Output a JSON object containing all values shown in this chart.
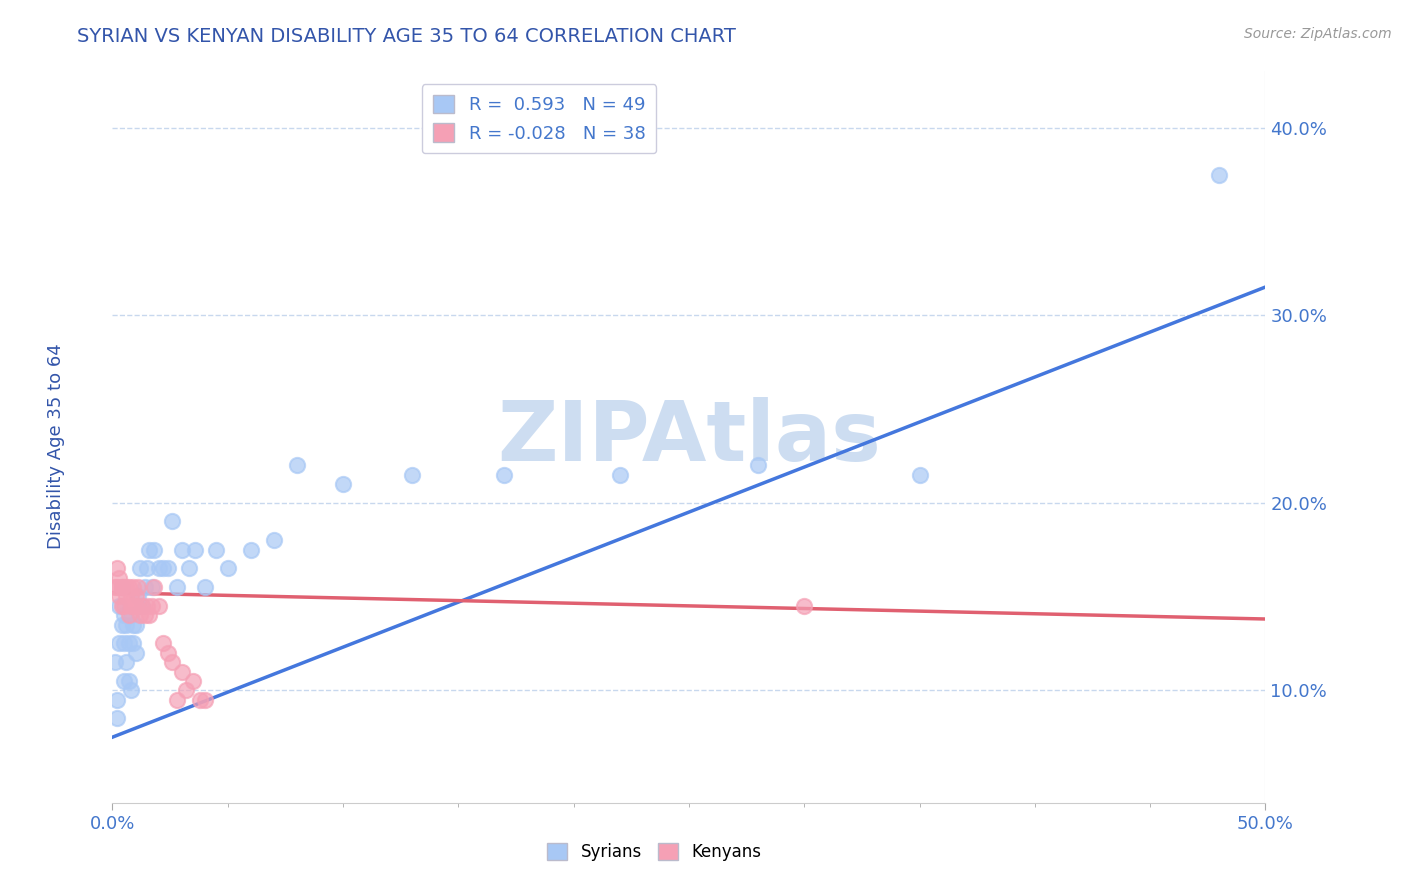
{
  "title": "SYRIAN VS KENYAN DISABILITY AGE 35 TO 64 CORRELATION CHART",
  "source": "Source: ZipAtlas.com",
  "ylabel": "Disability Age 35 to 64",
  "xmin": 0.0,
  "xmax": 0.5,
  "ymin": 0.04,
  "ymax": 0.43,
  "ytick_labels": [
    "10.0%",
    "20.0%",
    "30.0%",
    "40.0%"
  ],
  "ytick_positions": [
    0.1,
    0.2,
    0.3,
    0.4
  ],
  "legend_line1": "R =  0.593   N = 49",
  "legend_line2": "R = -0.028   N = 38",
  "syrian_color": "#a8c8f5",
  "kenyan_color": "#f5a0b5",
  "syrian_line_color": "#4477dd",
  "kenyan_line_color": "#e06070",
  "watermark": "ZIPAtlas",
  "watermark_color": "#c8daf0",
  "title_color": "#3355aa",
  "axis_label_color": "#3355aa",
  "tick_label_color": "#4477cc",
  "source_color": "#999999",
  "background_color": "#ffffff",
  "syrian_scatter_x": [
    0.001,
    0.002,
    0.002,
    0.003,
    0.003,
    0.004,
    0.004,
    0.005,
    0.005,
    0.005,
    0.006,
    0.006,
    0.007,
    0.007,
    0.008,
    0.008,
    0.009,
    0.009,
    0.01,
    0.01,
    0.011,
    0.012,
    0.013,
    0.014,
    0.015,
    0.016,
    0.017,
    0.018,
    0.02,
    0.022,
    0.024,
    0.026,
    0.028,
    0.03,
    0.033,
    0.036,
    0.04,
    0.045,
    0.05,
    0.06,
    0.07,
    0.08,
    0.1,
    0.13,
    0.17,
    0.22,
    0.28,
    0.35,
    0.48
  ],
  "syrian_scatter_y": [
    0.115,
    0.095,
    0.085,
    0.145,
    0.125,
    0.155,
    0.135,
    0.14,
    0.125,
    0.105,
    0.135,
    0.115,
    0.125,
    0.105,
    0.14,
    0.1,
    0.125,
    0.135,
    0.12,
    0.135,
    0.15,
    0.165,
    0.145,
    0.155,
    0.165,
    0.175,
    0.155,
    0.175,
    0.165,
    0.165,
    0.165,
    0.19,
    0.155,
    0.175,
    0.165,
    0.175,
    0.155,
    0.175,
    0.165,
    0.175,
    0.18,
    0.22,
    0.21,
    0.215,
    0.215,
    0.215,
    0.22,
    0.215,
    0.375
  ],
  "kenyan_scatter_x": [
    0.001,
    0.002,
    0.002,
    0.003,
    0.003,
    0.004,
    0.004,
    0.005,
    0.005,
    0.006,
    0.006,
    0.007,
    0.007,
    0.008,
    0.008,
    0.009,
    0.009,
    0.01,
    0.01,
    0.011,
    0.012,
    0.013,
    0.014,
    0.015,
    0.016,
    0.017,
    0.018,
    0.02,
    0.022,
    0.024,
    0.026,
    0.028,
    0.03,
    0.032,
    0.035,
    0.038,
    0.04,
    0.3
  ],
  "kenyan_scatter_y": [
    0.155,
    0.155,
    0.165,
    0.15,
    0.16,
    0.145,
    0.155,
    0.155,
    0.145,
    0.15,
    0.155,
    0.14,
    0.155,
    0.15,
    0.145,
    0.155,
    0.145,
    0.15,
    0.145,
    0.155,
    0.14,
    0.145,
    0.14,
    0.145,
    0.14,
    0.145,
    0.155,
    0.145,
    0.125,
    0.12,
    0.115,
    0.095,
    0.11,
    0.1,
    0.105,
    0.095,
    0.095,
    0.145
  ],
  "syrian_line_x": [
    0.0,
    0.5
  ],
  "syrian_line_y": [
    0.075,
    0.315
  ],
  "kenyan_line_x": [
    0.0,
    0.5
  ],
  "kenyan_line_y": [
    0.152,
    0.138
  ],
  "grid_color": "#c8d8ee",
  "grid_style": "--",
  "legend_box_color": "#ffffff",
  "legend_edge_color": "#ccccdd",
  "legend_syrian_color": "#a8c8f5",
  "legend_kenyan_color": "#f5a0b5"
}
